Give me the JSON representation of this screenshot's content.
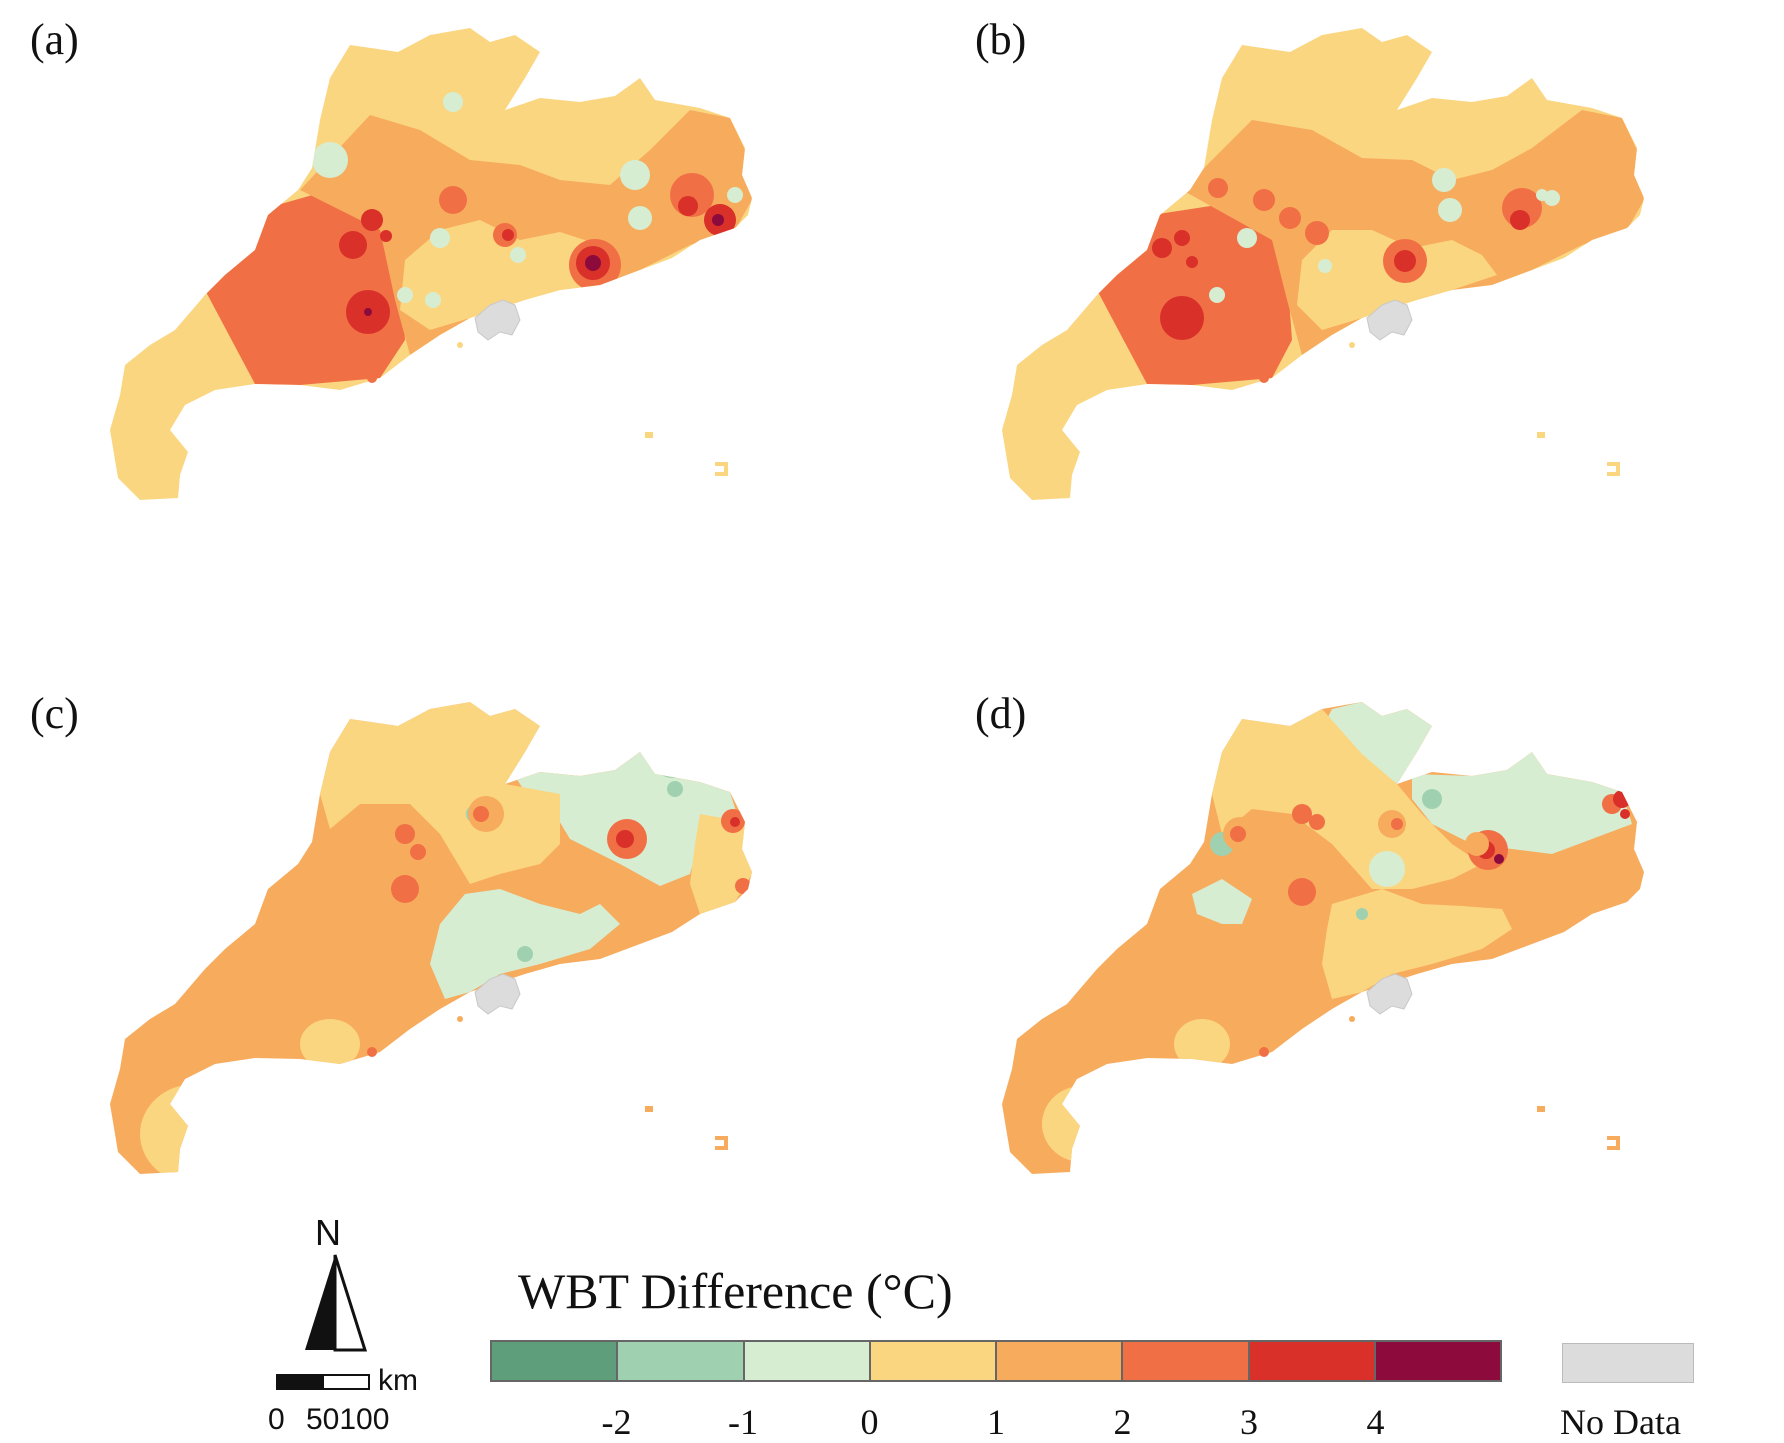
{
  "panels": [
    {
      "label": "(a)"
    },
    {
      "label": "(b)"
    },
    {
      "label": "(c)"
    },
    {
      "label": "(d)"
    }
  ],
  "legend": {
    "title": "WBT Difference (°C)",
    "classes": [
      {
        "range": "< -2",
        "color": "#5e9e7a"
      },
      {
        "range": "-2 to -1",
        "color": "#9fd1b0"
      },
      {
        "range": "-1 to 0",
        "color": "#d6edd2"
      },
      {
        "range": "0 to 1",
        "color": "#fbd681"
      },
      {
        "range": "1 to 2",
        "color": "#f7ab5d"
      },
      {
        "range": "2 to 3",
        "color": "#f06f45"
      },
      {
        "range": "3 to 4",
        "color": "#d93029"
      },
      {
        "range": "> 4",
        "color": "#8c0b3c"
      }
    ],
    "ticks": [
      "-2",
      "-1",
      "0",
      "1",
      "2",
      "3",
      "4"
    ],
    "no_data_label": "No Data",
    "no_data_color": "#dcdcdc"
  },
  "north_arrow": {
    "label": "N"
  },
  "scale_bar": {
    "unit": "km",
    "labels": [
      "0",
      "50100"
    ]
  }
}
